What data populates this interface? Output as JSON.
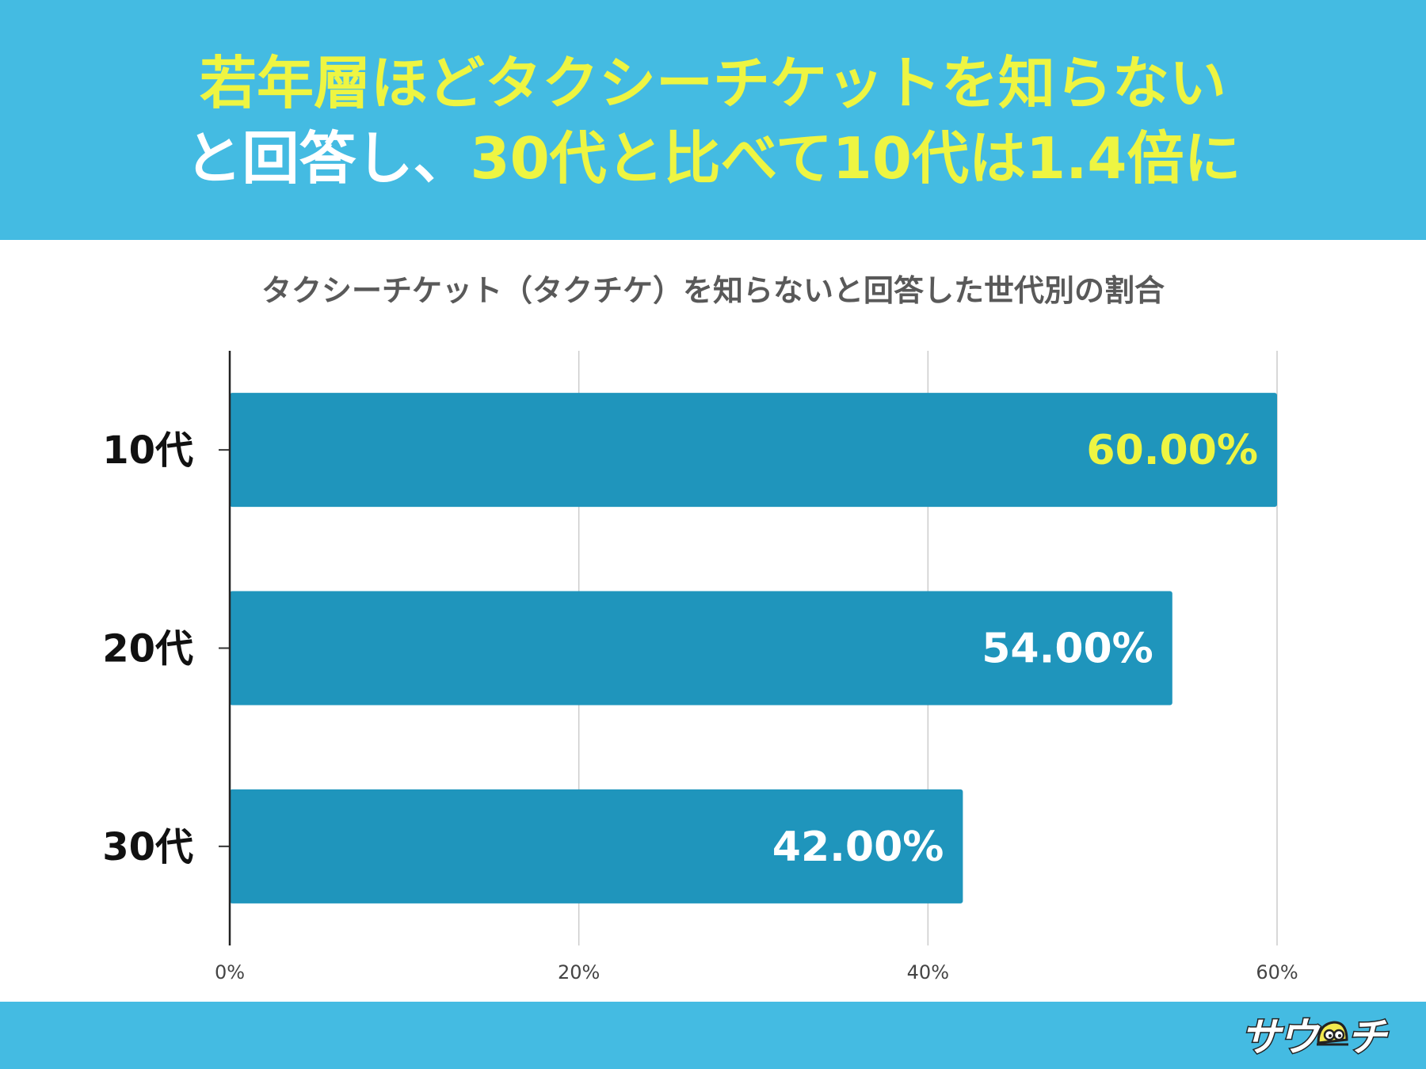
{
  "header": {
    "line1": "若年層ほどタクシーチケットを知らない",
    "line2_white": "と回答し、",
    "line2_yellow": "30代と比べて10代は1.4倍に"
  },
  "colors": {
    "header_bg": "#44bbe2",
    "highlight_yellow": "#eef542",
    "bar": "#1f95bc",
    "title_gray": "#595959"
  },
  "chart_data": {
    "type": "bar",
    "orientation": "horizontal",
    "title": "タクシーチケット（タクチケ）を知らないと回答した世代別の割合",
    "categories": [
      "10代",
      "20代",
      "30代"
    ],
    "values": [
      60.0,
      54.0,
      42.0
    ],
    "value_labels": [
      "60.00%",
      "54.00%",
      "42.00%"
    ],
    "value_label_colors": [
      "#eef542",
      "#ffffff",
      "#ffffff"
    ],
    "xlim": [
      0,
      60
    ],
    "xticks": [
      0,
      20,
      40,
      60
    ],
    "xtick_labels": [
      "0%",
      "20%",
      "40%",
      "60%"
    ],
    "grid": true,
    "xlabel": "",
    "ylabel": ""
  },
  "footer": {
    "logo_left": "サウ",
    "logo_right": "チ",
    "logo_icon": "mascot-icon"
  }
}
